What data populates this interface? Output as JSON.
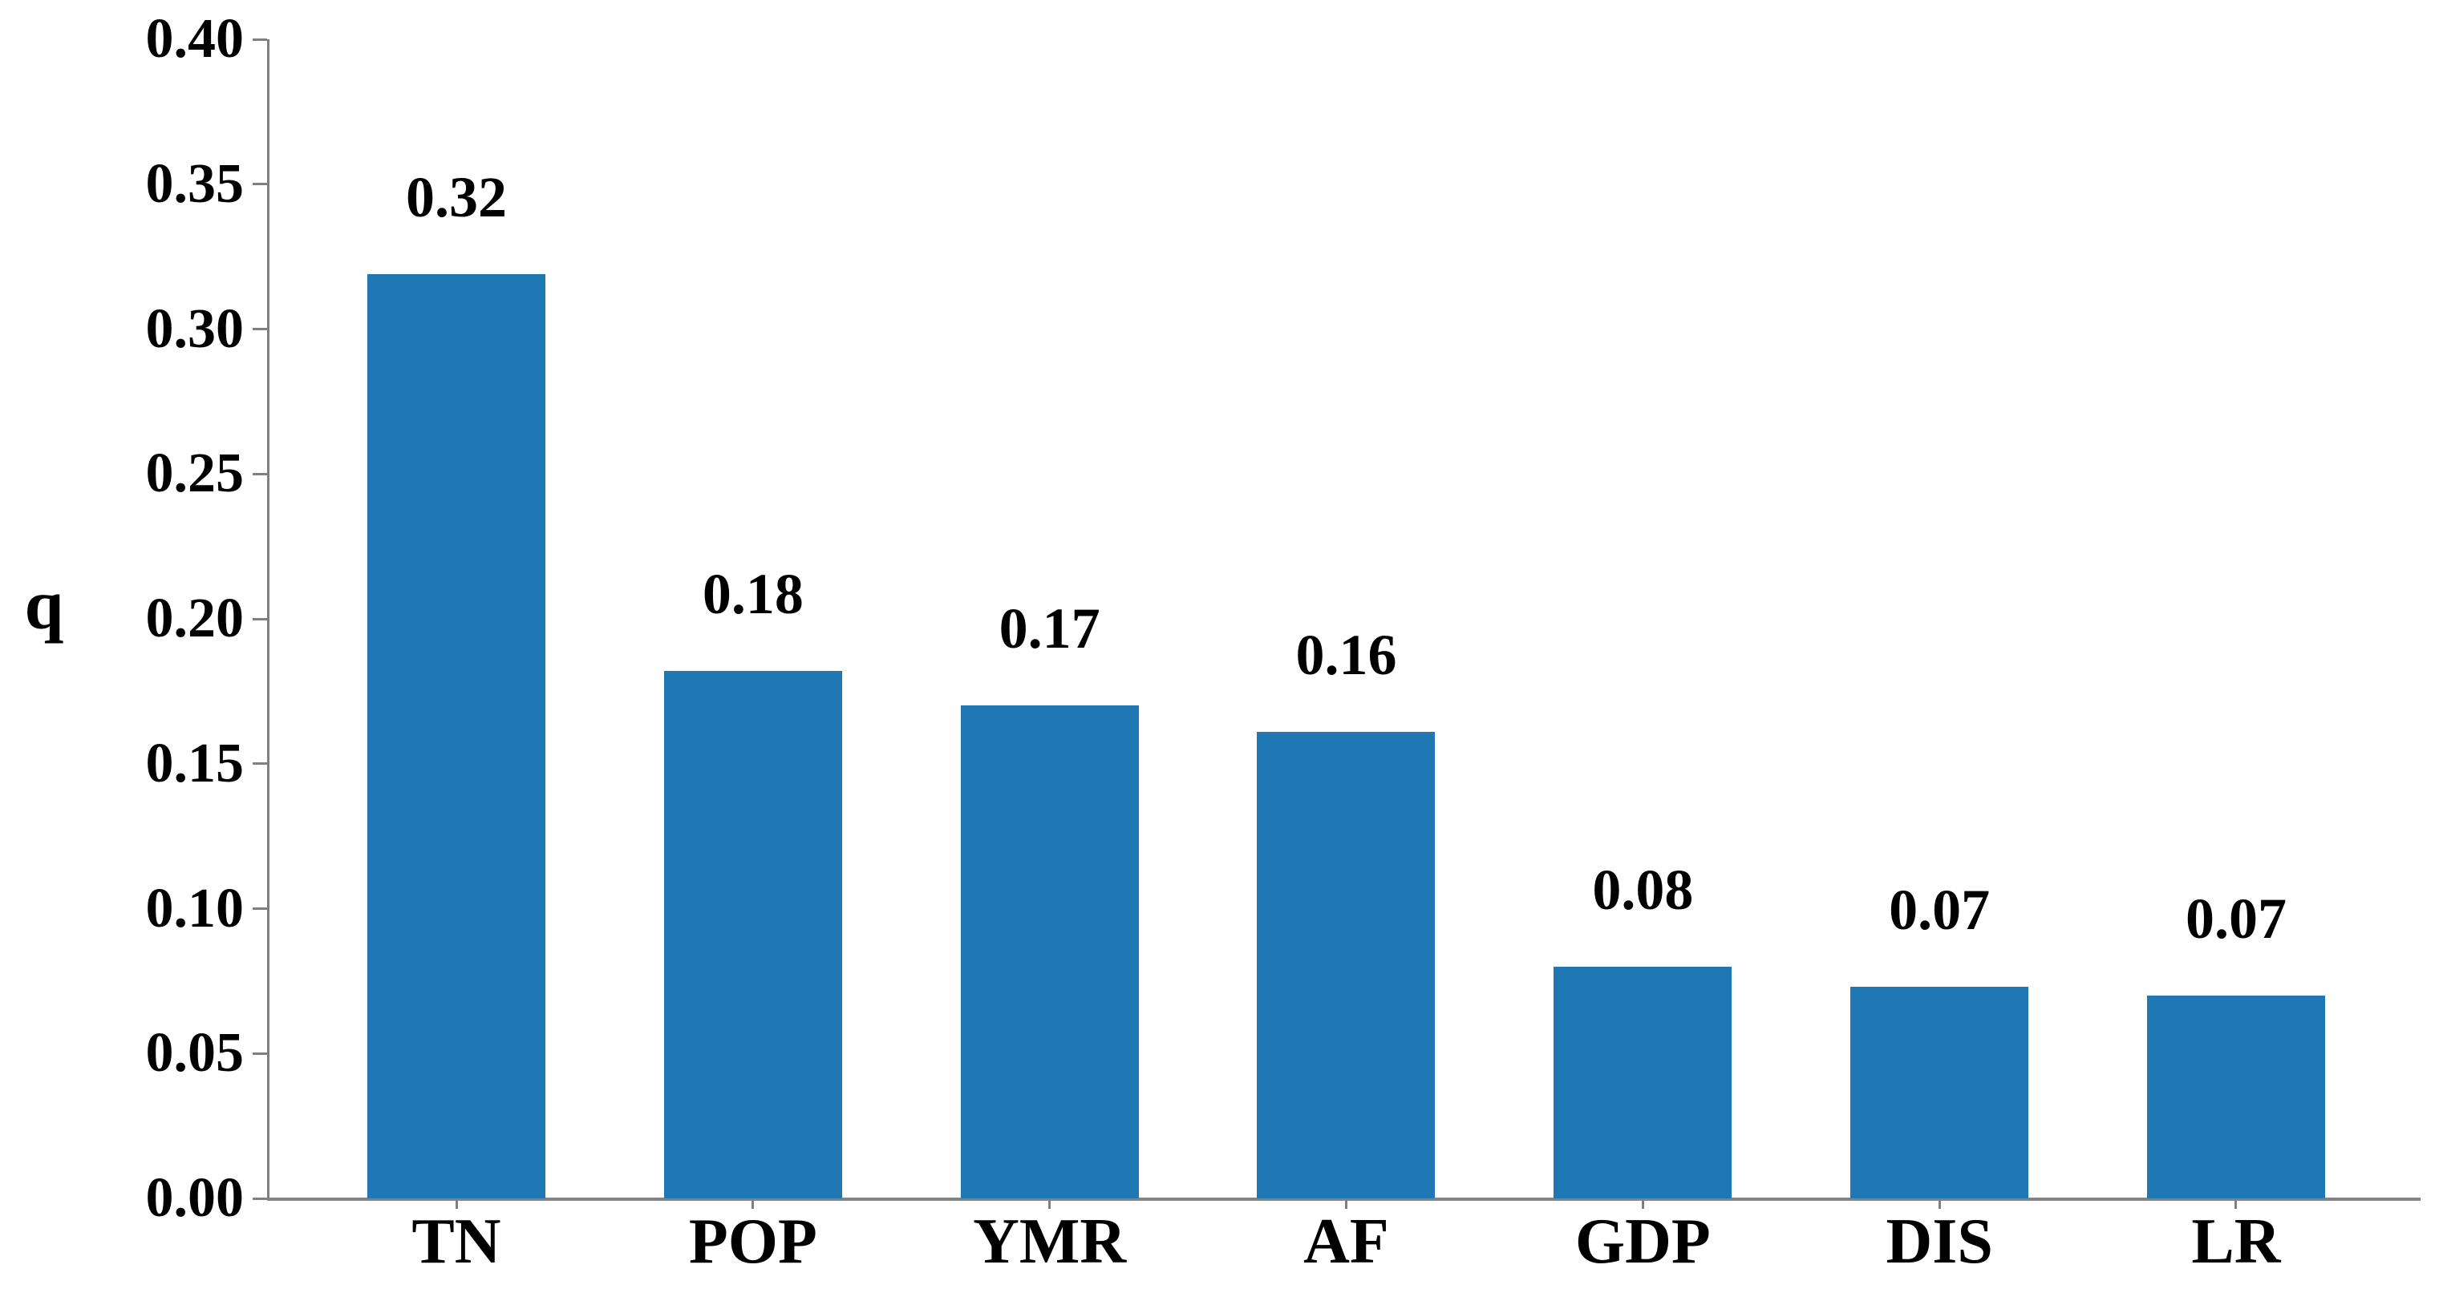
{
  "chart_data": {
    "type": "bar",
    "title": "",
    "xlabel": "",
    "ylabel": "q",
    "categories": [
      "TN",
      "POP",
      "YMR",
      "AF",
      "GDP",
      "DIS",
      "LR"
    ],
    "values": [
      0.32,
      0.18,
      0.17,
      0.16,
      0.08,
      0.07,
      0.07
    ],
    "precise_values": [
      0.319,
      0.182,
      0.17,
      0.161,
      0.08,
      0.073,
      0.07
    ],
    "bar_labels": [
      "0.32",
      "0.18",
      "0.17",
      "0.16",
      "0.08",
      "0.07",
      "0.07"
    ],
    "ylim": [
      0.0,
      0.4
    ],
    "ytick_step": 0.05,
    "ytick_labels": [
      "0.00",
      "0.05",
      "0.10",
      "0.15",
      "0.20",
      "0.25",
      "0.30",
      "0.35",
      "0.40"
    ],
    "grid": false,
    "legend": null,
    "bar_color": "#1f77b4",
    "axis_color": "#7f7f7f",
    "text_color": "#000000",
    "background_color": "#ffffff"
  }
}
